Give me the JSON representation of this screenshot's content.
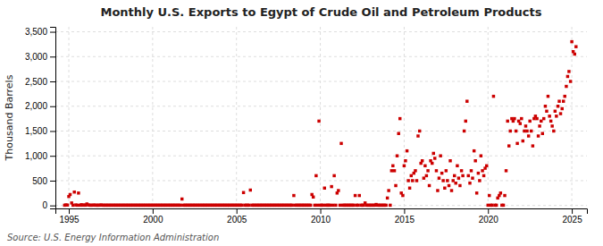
{
  "chart_data": {
    "type": "scatter",
    "title": "Monthly U.S. Exports to Egypt of Crude Oil and Petroleum Products",
    "ylabel": "Thousand Barrels",
    "annotations": [
      "Source: U.S. Energy Information Administration"
    ],
    "color": "#cc0000",
    "marker": "square",
    "grid": true,
    "xlim": [
      1994.2,
      2025.9
    ],
    "ylim": [
      -60,
      3600
    ],
    "xticks": [
      1995,
      2000,
      2005,
      2010,
      2015,
      2020,
      2025
    ],
    "yticks": [
      0,
      500,
      {
        "value": 1000,
        "label": "1,000"
      },
      {
        "value": 1500,
        "label": "1,500"
      },
      {
        "value": 2000,
        "label": "2,000"
      },
      {
        "value": 2500,
        "label": "2,500"
      },
      {
        "value": 3000,
        "label": "3,000"
      },
      {
        "value": 3500,
        "label": "3,500"
      }
    ],
    "x": [
      1994.75,
      1994.83,
      1994.92,
      1995.0,
      1995.08,
      1995.17,
      1995.25,
      1995.33,
      1995.42,
      1995.5,
      1995.58,
      1995.67,
      1995.75,
      1995.83,
      1995.92,
      1996.0,
      1996.08,
      1996.17,
      1996.25,
      1996.33,
      1996.42,
      1996.5,
      1996.58,
      1996.67,
      1996.75,
      1996.83,
      1996.92,
      1997.0,
      1997.08,
      1997.17,
      1997.25,
      1997.33,
      1997.42,
      1997.5,
      1997.58,
      1997.67,
      1997.75,
      1997.83,
      1997.92,
      1998.0,
      1998.08,
      1998.17,
      1998.25,
      1998.33,
      1998.42,
      1998.5,
      1998.58,
      1998.67,
      1998.75,
      1998.83,
      1998.92,
      1999.0,
      1999.08,
      1999.17,
      1999.25,
      1999.33,
      1999.42,
      1999.5,
      1999.58,
      1999.67,
      1999.75,
      1999.83,
      1999.92,
      2000.0,
      2000.08,
      2000.17,
      2000.25,
      2000.33,
      2000.42,
      2000.5,
      2000.58,
      2000.67,
      2000.75,
      2000.83,
      2000.92,
      2001.0,
      2001.08,
      2001.17,
      2001.25,
      2001.33,
      2001.42,
      2001.5,
      2001.58,
      2001.67,
      2001.75,
      2001.83,
      2001.92,
      2002.0,
      2002.08,
      2002.17,
      2002.25,
      2002.33,
      2002.42,
      2002.5,
      2002.58,
      2002.67,
      2002.75,
      2002.83,
      2002.92,
      2003.0,
      2003.08,
      2003.17,
      2003.25,
      2003.33,
      2003.42,
      2003.5,
      2003.58,
      2003.67,
      2003.75,
      2003.83,
      2003.92,
      2004.0,
      2004.08,
      2004.17,
      2004.25,
      2004.33,
      2004.42,
      2004.5,
      2004.58,
      2004.67,
      2004.75,
      2004.83,
      2004.92,
      2005.0,
      2005.08,
      2005.17,
      2005.25,
      2005.33,
      2005.42,
      2005.5,
      2005.58,
      2005.67,
      2005.75,
      2005.83,
      2005.92,
      2006.0,
      2006.08,
      2006.17,
      2006.25,
      2006.33,
      2006.42,
      2006.5,
      2006.58,
      2006.67,
      2006.75,
      2006.83,
      2006.92,
      2007.0,
      2007.08,
      2007.17,
      2007.25,
      2007.33,
      2007.42,
      2007.5,
      2007.58,
      2007.67,
      2007.75,
      2007.83,
      2007.92,
      2008.0,
      2008.08,
      2008.17,
      2008.25,
      2008.33,
      2008.42,
      2008.5,
      2008.58,
      2008.67,
      2008.75,
      2008.83,
      2008.92,
      2009.0,
      2009.08,
      2009.17,
      2009.25,
      2009.33,
      2009.42,
      2009.5,
      2009.58,
      2009.67,
      2009.75,
      2009.83,
      2009.92,
      2010.0,
      2010.08,
      2010.17,
      2010.25,
      2010.33,
      2010.42,
      2010.5,
      2010.58,
      2010.67,
      2010.75,
      2010.83,
      2010.92,
      2011.0,
      2011.08,
      2011.17,
      2011.25,
      2011.33,
      2011.42,
      2011.5,
      2011.58,
      2011.67,
      2011.75,
      2011.83,
      2011.92,
      2012.0,
      2012.08,
      2012.17,
      2012.25,
      2012.33,
      2012.42,
      2012.5,
      2012.58,
      2012.67,
      2012.75,
      2012.83,
      2012.92,
      2013.0,
      2013.08,
      2013.17,
      2013.25,
      2013.33,
      2013.42,
      2013.5,
      2013.58,
      2013.67,
      2013.75,
      2013.83,
      2013.92,
      2014.0,
      2014.08,
      2014.17,
      2014.25,
      2014.33,
      2014.42,
      2014.5,
      2014.58,
      2014.67,
      2014.75,
      2014.83,
      2014.92,
      2015.0,
      2015.08,
      2015.17,
      2015.25,
      2015.33,
      2015.42,
      2015.5,
      2015.58,
      2015.67,
      2015.75,
      2015.83,
      2015.92,
      2016.0,
      2016.08,
      2016.17,
      2016.25,
      2016.33,
      2016.42,
      2016.5,
      2016.58,
      2016.67,
      2016.75,
      2016.83,
      2016.92,
      2017.0,
      2017.08,
      2017.17,
      2017.25,
      2017.33,
      2017.42,
      2017.5,
      2017.58,
      2017.67,
      2017.75,
      2017.83,
      2017.92,
      2018.0,
      2018.08,
      2018.17,
      2018.25,
      2018.33,
      2018.42,
      2018.5,
      2018.58,
      2018.67,
      2018.75,
      2018.83,
      2018.92,
      2019.0,
      2019.08,
      2019.17,
      2019.25,
      2019.33,
      2019.42,
      2019.5,
      2019.58,
      2019.67,
      2019.75,
      2019.83,
      2019.92,
      2020.0,
      2020.08,
      2020.17,
      2020.25,
      2020.33,
      2020.42,
      2020.5,
      2020.58,
      2020.67,
      2020.75,
      2020.83,
      2020.92,
      2021.0,
      2021.08,
      2021.17,
      2021.25,
      2021.33,
      2021.42,
      2021.5,
      2021.58,
      2021.67,
      2021.75,
      2021.83,
      2021.92,
      2022.0,
      2022.08,
      2022.17,
      2022.25,
      2022.33,
      2022.42,
      2022.5,
      2022.58,
      2022.67,
      2022.75,
      2022.83,
      2022.92,
      2023.0,
      2023.08,
      2023.17,
      2023.25,
      2023.33,
      2023.42,
      2023.5,
      2023.58,
      2023.67,
      2023.75,
      2023.83,
      2023.92,
      2024.0,
      2024.08,
      2024.17,
      2024.25,
      2024.33,
      2024.42,
      2024.5,
      2024.58,
      2024.67,
      2024.75,
      2024.83,
      2024.92,
      2025.0,
      2025.08,
      2025.17,
      2025.25
    ],
    "values": [
      5,
      10,
      8,
      180,
      220,
      50,
      5,
      270,
      10,
      5,
      250,
      5,
      15,
      5,
      10,
      5,
      30,
      10,
      5,
      5,
      5,
      8,
      5,
      5,
      5,
      5,
      10,
      5,
      5,
      5,
      5,
      5,
      5,
      5,
      5,
      5,
      5,
      5,
      5,
      5,
      5,
      5,
      5,
      5,
      5,
      5,
      5,
      5,
      5,
      5,
      5,
      5,
      5,
      5,
      5,
      5,
      5,
      5,
      5,
      5,
      5,
      5,
      5,
      5,
      5,
      5,
      5,
      5,
      5,
      5,
      5,
      5,
      5,
      5,
      5,
      5,
      5,
      5,
      5,
      5,
      5,
      5,
      5,
      5,
      130,
      5,
      5,
      5,
      5,
      5,
      5,
      5,
      5,
      5,
      5,
      5,
      5,
      5,
      5,
      5,
      5,
      5,
      5,
      5,
      5,
      5,
      5,
      5,
      5,
      5,
      5,
      5,
      5,
      5,
      5,
      5,
      5,
      5,
      5,
      5,
      5,
      5,
      5,
      5,
      5,
      5,
      5,
      5,
      260,
      5,
      5,
      5,
      5,
      310,
      5,
      5,
      5,
      5,
      5,
      5,
      5,
      5,
      5,
      5,
      5,
      5,
      5,
      5,
      5,
      5,
      5,
      5,
      5,
      5,
      5,
      5,
      5,
      5,
      5,
      5,
      5,
      5,
      5,
      5,
      200,
      5,
      5,
      5,
      5,
      5,
      5,
      5,
      5,
      5,
      5,
      5,
      5,
      220,
      170,
      5,
      600,
      5,
      1700,
      5,
      5,
      5,
      350,
      5,
      5,
      5,
      5,
      380,
      5,
      600,
      5,
      250,
      300,
      5,
      1250,
      5,
      5,
      5,
      5,
      5,
      5,
      5,
      5,
      5,
      200,
      5,
      5,
      200,
      5,
      5,
      5,
      50,
      5,
      5,
      5,
      5,
      5,
      5,
      5,
      20,
      5,
      5,
      5,
      5,
      5,
      5,
      5,
      150,
      300,
      5,
      700,
      800,
      700,
      400,
      1000,
      1450,
      1750,
      250,
      200,
      800,
      900,
      1100,
      500,
      350,
      600,
      500,
      650,
      700,
      500,
      1400,
      1500,
      850,
      900,
      550,
      800,
      600,
      700,
      400,
      900,
      850,
      1050,
      950,
      700,
      300,
      550,
      1000,
      650,
      500,
      350,
      700,
      500,
      400,
      900,
      300,
      500,
      600,
      450,
      800,
      550,
      400,
      700,
      600,
      1500,
      1700,
      2100,
      600,
      450,
      700,
      550,
      1100,
      900,
      250,
      650,
      500,
      1000,
      700,
      600,
      750,
      800,
      5,
      200,
      5,
      5,
      2200,
      5,
      5,
      150,
      200,
      250,
      5,
      5,
      200,
      700,
      1700,
      1200,
      1500,
      1750,
      1700,
      1750,
      1500,
      1250,
      1700,
      1650,
      1750,
      1300,
      1500,
      1600,
      1500,
      1400,
      1700,
      1500,
      1200,
      1750,
      1800,
      1750,
      1400,
      1600,
      1700,
      1450,
      1750,
      2000,
      1900,
      2200,
      1800,
      1700,
      1600,
      1500,
      1900,
      1800,
      2000,
      2100,
      1850,
      1950,
      2100,
      2200,
      2400,
      2600,
      2700,
      2500,
      3300,
      3100,
      3050,
      3200
    ]
  }
}
